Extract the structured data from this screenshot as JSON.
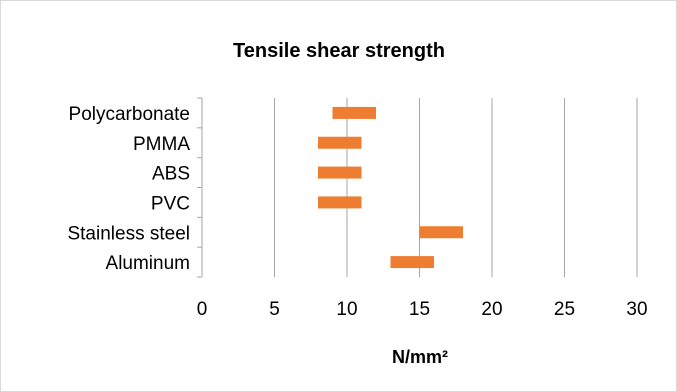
{
  "chart_data": {
    "type": "bar",
    "orientation": "horizontal",
    "title": "Tensile shear strength",
    "xlabel": "N/mm²",
    "ylabel": "",
    "categories": [
      "Polycarbonate",
      "PMMA",
      "ABS",
      "PVC",
      "Stainless steel",
      "Aluminum"
    ],
    "ranges": [
      [
        9,
        12
      ],
      [
        8,
        11
      ],
      [
        8,
        11
      ],
      [
        8,
        11
      ],
      [
        15,
        18
      ],
      [
        13,
        16
      ]
    ],
    "xlim": [
      0,
      30
    ],
    "xticks": [
      0,
      5,
      10,
      15,
      20,
      25,
      30
    ],
    "grid": "vertical",
    "legend": "none",
    "bar_color": "#ED7D31",
    "grid_color": "#A6A6A6",
    "text_color": "#000000"
  }
}
